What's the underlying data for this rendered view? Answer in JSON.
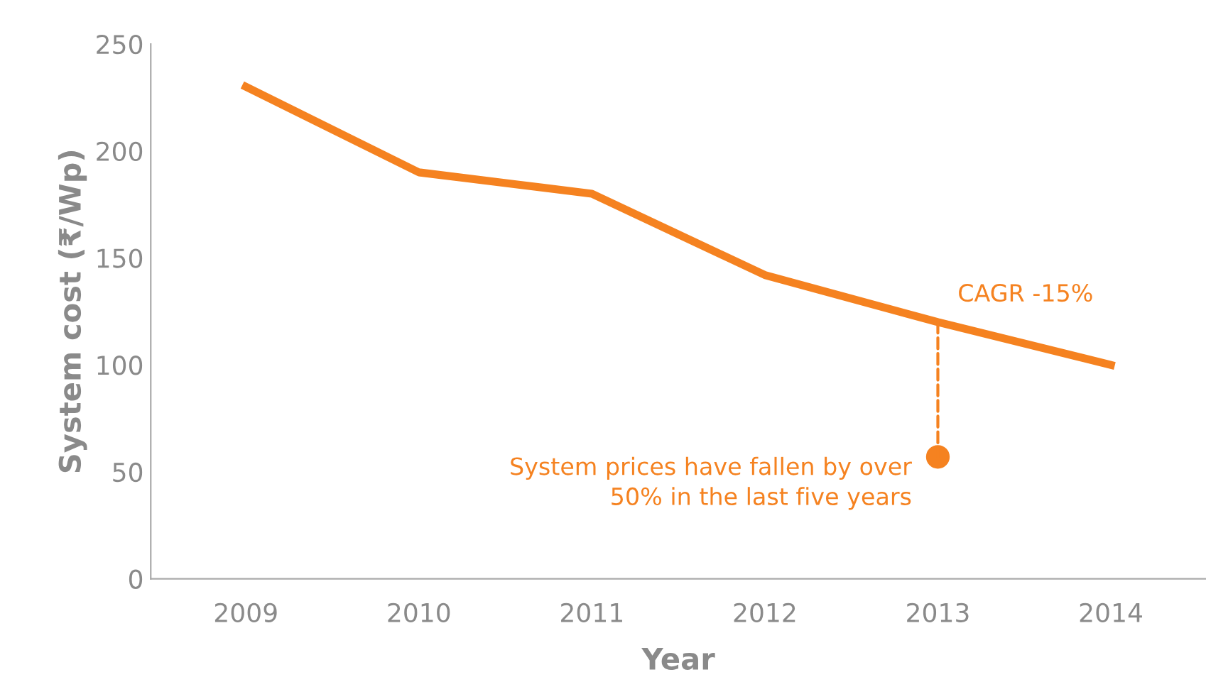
{
  "chart_data": {
    "type": "line",
    "xlabel": "Year",
    "ylabel": "System cost (₹/Wp)",
    "categories": [
      "2009",
      "2010",
      "2011",
      "2012",
      "2013",
      "2014"
    ],
    "series": [
      {
        "color": "#f58220",
        "values": [
          230,
          190,
          180,
          142,
          120,
          100
        ]
      }
    ],
    "ylim": [
      0,
      250
    ],
    "yticks": [
      0,
      50,
      100,
      150,
      200,
      250
    ],
    "grid": false,
    "legend": false,
    "marker": "none",
    "line_style": "solid",
    "annotations": [
      {
        "text": "CAGR -15%",
        "x": "2013",
        "y": 120
      },
      {
        "text": "System prices have fallen by over\n50% in the last five years",
        "x": "2013",
        "y": 57
      }
    ]
  }
}
